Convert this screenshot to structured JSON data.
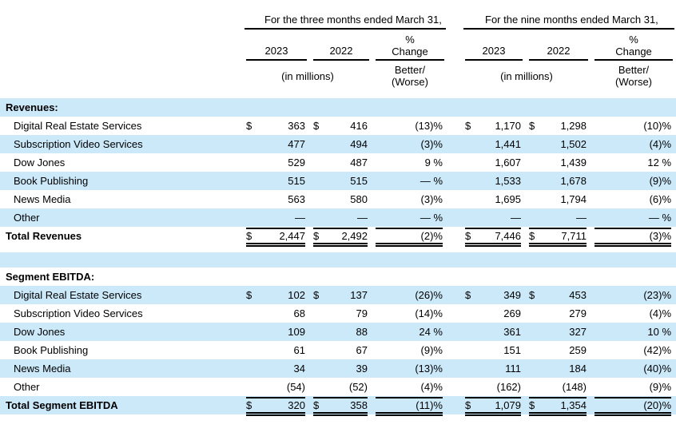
{
  "header": {
    "period_3mo": "For the three months ended March 31,",
    "period_9mo": "For the nine months ended March 31,",
    "year_1": "2023",
    "year_2": "2022",
    "pct_line1": "%",
    "pct_line2": "Change",
    "in_millions": "(in millions)",
    "better_line1": "Better/",
    "better_line2": "(Worse)"
  },
  "colors": {
    "row_highlight": "#CCE9FA",
    "text": "#000000",
    "rule": "#000000"
  },
  "body_rows": [
    {
      "type": "section",
      "blue": true,
      "bold": true,
      "label": "Revenues:"
    },
    {
      "type": "data",
      "blue": false,
      "indent": true,
      "label": "Digital Real Estate Services",
      "cells": [
        "$",
        "363",
        "$",
        "416",
        "(13)%",
        "$",
        "1,170",
        "$",
        "1,298",
        "(10)%"
      ]
    },
    {
      "type": "data",
      "blue": true,
      "indent": true,
      "label": "Subscription Video Services",
      "cells": [
        "",
        "477",
        "",
        "494",
        "(3)%",
        "",
        "1,441",
        "",
        "1,502",
        "(4)%"
      ]
    },
    {
      "type": "data",
      "blue": false,
      "indent": true,
      "label": "Dow Jones",
      "cells": [
        "",
        "529",
        "",
        "487",
        "9 %",
        "",
        "1,607",
        "",
        "1,439",
        "12 %"
      ]
    },
    {
      "type": "data",
      "blue": true,
      "indent": true,
      "label": "Book Publishing",
      "cells": [
        "",
        "515",
        "",
        "515",
        "— %",
        "",
        "1,533",
        "",
        "1,678",
        "(9)%"
      ]
    },
    {
      "type": "data",
      "blue": false,
      "indent": true,
      "label": "News Media",
      "cells": [
        "",
        "563",
        "",
        "580",
        "(3)%",
        "",
        "1,695",
        "",
        "1,794",
        "(6)%"
      ]
    },
    {
      "type": "data",
      "blue": true,
      "indent": true,
      "label": "Other",
      "cells": [
        "",
        "—",
        "",
        "—",
        "— %",
        "",
        "—",
        "",
        "—",
        "— %"
      ]
    },
    {
      "type": "total",
      "blue": false,
      "bold": true,
      "label": "Total Revenues",
      "cells": [
        "$",
        "2,447",
        "$",
        "2,492",
        "(2)%",
        "$",
        "7,446",
        "$",
        "7,711",
        "(3)%"
      ]
    },
    {
      "type": "spacer",
      "blue": false,
      "h": 9
    },
    {
      "type": "spacer",
      "blue": true,
      "h": 19
    },
    {
      "type": "section",
      "blue": false,
      "bold": true,
      "label": "Segment EBITDA:"
    },
    {
      "type": "data",
      "blue": true,
      "indent": true,
      "label": "Digital Real Estate Services",
      "cells": [
        "$",
        "102",
        "$",
        "137",
        "(26)%",
        "$",
        "349",
        "$",
        "453",
        "(23)%"
      ]
    },
    {
      "type": "data",
      "blue": false,
      "indent": true,
      "label": "Subscription Video Services",
      "cells": [
        "",
        "68",
        "",
        "79",
        "(14)%",
        "",
        "269",
        "",
        "279",
        "(4)%"
      ]
    },
    {
      "type": "data",
      "blue": true,
      "indent": true,
      "label": "Dow Jones",
      "cells": [
        "",
        "109",
        "",
        "88",
        "24 %",
        "",
        "361",
        "",
        "327",
        "10 %"
      ]
    },
    {
      "type": "data",
      "blue": false,
      "indent": true,
      "label": "Book Publishing",
      "cells": [
        "",
        "61",
        "",
        "67",
        "(9)%",
        "",
        "151",
        "",
        "259",
        "(42)%"
      ]
    },
    {
      "type": "data",
      "blue": true,
      "indent": true,
      "label": "News Media",
      "cells": [
        "",
        "34",
        "",
        "39",
        "(13)%",
        "",
        "111",
        "",
        "184",
        "(40)%"
      ]
    },
    {
      "type": "data",
      "blue": false,
      "indent": true,
      "label": "Other",
      "cells": [
        "",
        "(54)",
        "",
        "(52)",
        "(4)%",
        "",
        "(162)",
        "",
        "(148)",
        "(9)%"
      ]
    },
    {
      "type": "total",
      "blue": true,
      "bold": true,
      "label": "Total Segment EBITDA",
      "cells": [
        "$",
        "320",
        "$",
        "358",
        "(11)%",
        "$",
        "1,079",
        "$",
        "1,354",
        "(20)%"
      ]
    }
  ]
}
